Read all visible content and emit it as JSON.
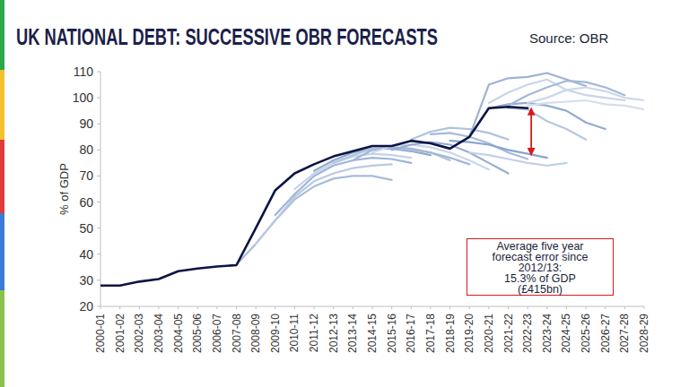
{
  "chart_data": {
    "type": "line",
    "title": "UK NATIONAL DEBT: SUCCESSIVE OBR FORECASTS",
    "source": "Source: OBR",
    "y_label": "% of GDP",
    "annotation": [
      "Average five year",
      "forecast error since",
      "2012/13:",
      "15.3% of GDP",
      "(£415bn)"
    ],
    "arrow": {
      "x": "2022-23",
      "from": 96,
      "to": 78,
      "color": "#d7191c"
    },
    "categories": [
      "2000-01",
      "2001-02",
      "2002-03",
      "2003-04",
      "2004-05",
      "2005-06",
      "2006-07",
      "2007-08",
      "2008-09",
      "2009-10",
      "2010-11",
      "2011-12",
      "2012-13",
      "2013-14",
      "2014-15",
      "2015-16",
      "2016-17",
      "2017-18",
      "2018-19",
      "2019-20",
      "2020-21",
      "2021-22",
      "2022-23",
      "2023-24",
      "2024-25",
      "2025-26",
      "2026-27",
      "2027-28",
      "2028-29"
    ],
    "ylim": [
      20,
      110
    ],
    "yticks": [
      20,
      30,
      40,
      50,
      60,
      70,
      80,
      90,
      100,
      110
    ],
    "grid": false,
    "series": [
      {
        "color": "#a9bcd9",
        "values": [
          null,
          null,
          null,
          null,
          null,
          null,
          null,
          36,
          44,
          53,
          61,
          66,
          69,
          70,
          70,
          68.5,
          null,
          null,
          null,
          null,
          null,
          null,
          null,
          null,
          null,
          null,
          null,
          null,
          null
        ]
      },
      {
        "color": "#b9c9e1",
        "values": [
          null,
          null,
          null,
          null,
          null,
          null,
          null,
          null,
          44,
          53,
          62,
          68,
          71,
          73,
          74,
          74.5,
          null,
          null,
          null,
          null,
          null,
          null,
          null,
          null,
          null,
          null,
          null,
          null,
          null
        ]
      },
      {
        "color": "#9fb4d6",
        "values": [
          null,
          null,
          null,
          null,
          null,
          null,
          null,
          null,
          null,
          55,
          63,
          70,
          74,
          76,
          77,
          76.5,
          75,
          null,
          null,
          null,
          null,
          null,
          null,
          null,
          null,
          null,
          null,
          null,
          null
        ]
      },
      {
        "color": "#c4d2e8",
        "values": [
          null,
          null,
          null,
          null,
          null,
          null,
          null,
          null,
          null,
          null,
          65,
          71,
          75,
          77.5,
          78.5,
          78,
          77,
          null,
          null,
          null,
          null,
          null,
          null,
          null,
          null,
          null,
          null,
          null,
          null
        ]
      },
      {
        "color": "#8fa8cf",
        "values": [
          null,
          null,
          null,
          null,
          null,
          null,
          null,
          null,
          null,
          null,
          null,
          72,
          76,
          79,
          80.5,
          80.5,
          79.5,
          78,
          null,
          null,
          null,
          null,
          null,
          null,
          null,
          null,
          null,
          null,
          null
        ]
      },
      {
        "color": "#b3c4df",
        "values": [
          null,
          null,
          null,
          null,
          null,
          null,
          null,
          null,
          null,
          null,
          null,
          null,
          75,
          78,
          80.5,
          81,
          80,
          79,
          76,
          null,
          null,
          null,
          null,
          null,
          null,
          null,
          null,
          null,
          null
        ]
      },
      {
        "color": "#a2b6d7",
        "values": [
          null,
          null,
          null,
          null,
          null,
          null,
          null,
          null,
          null,
          null,
          null,
          null,
          null,
          76,
          80,
          81,
          80.5,
          79,
          77,
          74.5,
          null,
          null,
          null,
          null,
          null,
          null,
          null,
          null,
          null
        ]
      },
      {
        "color": "#c9d6ea",
        "values": [
          null,
          null,
          null,
          null,
          null,
          null,
          null,
          null,
          null,
          null,
          null,
          null,
          null,
          null,
          79,
          81.5,
          82,
          81,
          79,
          76,
          72.5,
          null,
          null,
          null,
          null,
          null,
          null,
          null,
          null
        ]
      },
      {
        "color": "#96add2",
        "values": [
          null,
          null,
          null,
          null,
          null,
          null,
          null,
          null,
          null,
          null,
          null,
          null,
          null,
          null,
          null,
          80,
          82,
          83,
          82,
          79,
          75,
          71,
          null,
          null,
          null,
          null,
          null,
          null,
          null
        ]
      },
      {
        "color": "#b0c2de",
        "values": [
          null,
          null,
          null,
          null,
          null,
          null,
          null,
          null,
          null,
          null,
          null,
          null,
          null,
          null,
          null,
          null,
          84,
          87,
          88.5,
          88,
          86.5,
          84,
          null,
          null,
          null,
          null,
          null,
          null,
          null
        ]
      },
      {
        "color": "#a6b9d9",
        "values": [
          null,
          null,
          null,
          null,
          null,
          null,
          null,
          null,
          null,
          null,
          null,
          null,
          null,
          null,
          null,
          null,
          null,
          86,
          86.5,
          85,
          82.5,
          79,
          76.5,
          null,
          null,
          null,
          null,
          null,
          null
        ]
      },
      {
        "color": "#8ba5ce",
        "values": [
          null,
          null,
          null,
          null,
          null,
          null,
          null,
          null,
          null,
          null,
          null,
          null,
          null,
          null,
          null,
          null,
          null,
          null,
          83.5,
          83,
          82,
          80,
          78.5,
          77,
          null,
          null,
          null,
          null,
          null
        ]
      },
      {
        "color": "#c2d0e7",
        "values": [
          null,
          null,
          null,
          null,
          null,
          null,
          null,
          null,
          null,
          null,
          null,
          null,
          null,
          null,
          null,
          null,
          null,
          null,
          null,
          79,
          78,
          76.5,
          75,
          74,
          75,
          null,
          null,
          null,
          null
        ]
      },
      {
        "color": "#9db2d5",
        "values": [
          null,
          null,
          null,
          null,
          null,
          null,
          null,
          null,
          null,
          null,
          null,
          null,
          null,
          null,
          null,
          null,
          null,
          null,
          null,
          85,
          105,
          107.5,
          108,
          109.5,
          107,
          104.5,
          null,
          null,
          null
        ]
      },
      {
        "color": "#c8d5ea",
        "values": [
          null,
          null,
          null,
          null,
          null,
          null,
          null,
          null,
          null,
          null,
          null,
          null,
          null,
          null,
          null,
          null,
          null,
          null,
          null,
          null,
          98,
          102,
          105,
          107,
          103,
          101,
          100,
          99,
          null
        ]
      },
      {
        "color": "#93abd1",
        "values": [
          null,
          null,
          null,
          null,
          null,
          null,
          null,
          null,
          null,
          null,
          null,
          null,
          null,
          null,
          null,
          null,
          null,
          null,
          null,
          null,
          96,
          97.5,
          98,
          97,
          95,
          90.5,
          88,
          null,
          null
        ]
      },
      {
        "color": "#b6c7e0",
        "values": [
          null,
          null,
          null,
          null,
          null,
          null,
          null,
          null,
          null,
          null,
          null,
          null,
          null,
          null,
          null,
          null,
          null,
          null,
          null,
          null,
          null,
          96,
          95.5,
          91,
          88,
          84,
          null,
          null,
          null
        ]
      },
      {
        "color": "#a4b8d8",
        "values": [
          null,
          null,
          null,
          null,
          null,
          null,
          null,
          null,
          null,
          null,
          null,
          null,
          null,
          null,
          null,
          null,
          null,
          null,
          null,
          null,
          null,
          97,
          101,
          104,
          106.5,
          106,
          104,
          101,
          null
        ]
      },
      {
        "color": "#ccd8eb",
        "values": [
          null,
          null,
          null,
          null,
          null,
          null,
          null,
          null,
          null,
          null,
          null,
          null,
          null,
          null,
          null,
          null,
          null,
          null,
          null,
          null,
          null,
          null,
          98,
          100,
          103,
          104,
          102.5,
          100,
          99
        ]
      },
      {
        "color": "#d4deee",
        "values": [
          null,
          null,
          null,
          null,
          null,
          null,
          null,
          null,
          null,
          null,
          null,
          null,
          null,
          null,
          null,
          null,
          null,
          null,
          null,
          null,
          null,
          null,
          97,
          98,
          98.5,
          99,
          97.5,
          97,
          95.5
        ]
      },
      {
        "color": "#0b1443",
        "values": [
          28,
          28,
          29.5,
          30.5,
          33.5,
          34.5,
          35.3,
          35.8,
          50,
          64.5,
          71,
          74.5,
          77.5,
          79.5,
          81.5,
          81.5,
          83.5,
          82.5,
          80.5,
          85,
          96,
          96.5,
          96,
          null,
          null,
          null,
          null,
          null,
          null
        ]
      }
    ]
  }
}
